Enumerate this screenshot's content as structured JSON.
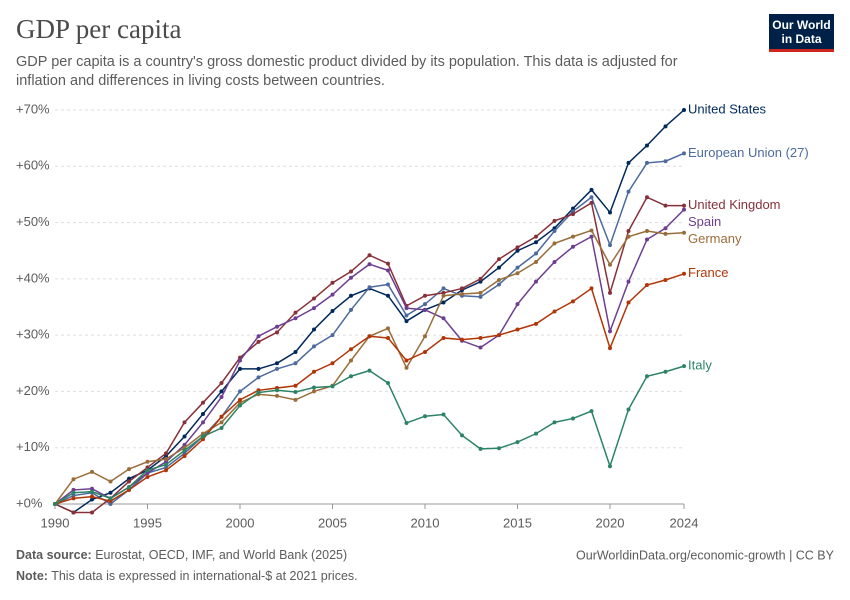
{
  "chart_data": {
    "type": "line",
    "title": "GDP per capita",
    "subtitle": [
      "GDP per capita is a country's gross domestic product divided by its population. This data is adjusted for",
      "inflation and differences in living costs between countries."
    ],
    "logo": [
      "Our World",
      "in Data"
    ],
    "source_label": "Data source:",
    "source": "Eurostat, OECD, IMF, and World Bank (2025)",
    "note_label": "Note:",
    "note": "This data is expressed in international-$ at 2021 prices.",
    "credit": "OurWorldinData.org/economic-growth | CC BY",
    "x": [
      1990,
      1991,
      1992,
      1993,
      1994,
      1995,
      1996,
      1997,
      1998,
      1999,
      2000,
      2001,
      2002,
      2003,
      2004,
      2005,
      2006,
      2007,
      2008,
      2009,
      2010,
      2011,
      2012,
      2013,
      2014,
      2015,
      2016,
      2017,
      2018,
      2019,
      2020,
      2021,
      2022,
      2023,
      2024
    ],
    "xlim": [
      1990,
      2024
    ],
    "xticks": [
      1990,
      1995,
      2000,
      2005,
      2010,
      2015,
      2020,
      2024
    ],
    "ylim": [
      0,
      70
    ],
    "yticks": [
      {
        "value": 0,
        "label": "+0%"
      },
      {
        "value": 10,
        "label": "+10%"
      },
      {
        "value": 20,
        "label": "+20%"
      },
      {
        "value": 30,
        "label": "+30%"
      },
      {
        "value": 40,
        "label": "+40%"
      },
      {
        "value": 50,
        "label": "+50%"
      },
      {
        "value": 60,
        "label": "+60%"
      },
      {
        "value": 70,
        "label": "+70%"
      }
    ],
    "grid": true,
    "series": [
      {
        "name": "United States",
        "color": "#00295b",
        "values": [
          0,
          -1.5,
          0.8,
          2,
          4.5,
          6,
          8.5,
          12,
          16,
          20,
          24,
          24,
          25,
          27,
          31,
          34.3,
          37,
          38.3,
          37,
          32.5,
          34.5,
          35.8,
          38,
          39.5,
          42,
          45,
          46.5,
          49,
          52.5,
          55.8,
          51.8,
          60.6,
          63.7,
          67.1,
          70
        ]
      },
      {
        "name": "European Union (27)",
        "color": "#4c6a9c",
        "values": [
          0,
          1.5,
          2,
          0,
          2.5,
          5.5,
          6.5,
          9,
          12,
          15.5,
          20,
          22.5,
          24,
          25,
          28,
          30,
          34.5,
          38.5,
          39,
          33.5,
          35.5,
          38.3,
          37,
          36.8,
          39,
          42,
          44.5,
          48.5,
          52,
          54.5,
          46,
          55.5,
          60.6,
          60.9,
          62.3
        ]
      },
      {
        "name": "United Kingdom",
        "color": "#883039",
        "values": [
          0,
          -1.5,
          -1.5,
          1,
          4,
          6.5,
          9,
          14.5,
          18,
          21.5,
          26,
          28.8,
          30.5,
          34,
          36.5,
          39.3,
          41.3,
          44.2,
          42.7,
          35.2,
          37,
          37.5,
          38.3,
          40,
          43.5,
          45.6,
          47.5,
          50.3,
          51.5,
          53.5,
          37.5,
          48.5,
          54.5,
          53,
          53
        ]
      },
      {
        "name": "Spain",
        "color": "#6d3e91",
        "values": [
          0,
          2.5,
          2.7,
          1,
          3,
          5.5,
          7.5,
          10.5,
          14.5,
          19,
          25.5,
          29.8,
          31.5,
          33,
          34.8,
          37.2,
          40.2,
          42.6,
          41.5,
          34.8,
          34.5,
          33,
          29,
          27.8,
          30,
          35.5,
          39.5,
          43,
          45.7,
          47.5,
          30.7,
          39.5,
          47,
          49,
          52.3
        ]
      },
      {
        "name": "Germany",
        "color": "#996d39",
        "values": [
          0,
          4.4,
          5.7,
          4,
          6.2,
          7.5,
          8,
          10,
          12.5,
          14.5,
          18,
          19.5,
          19.2,
          18.5,
          20,
          21,
          25.5,
          29.8,
          31.2,
          24.2,
          29.8,
          37,
          37.3,
          37.5,
          39.8,
          41,
          43,
          46.3,
          47.5,
          48.6,
          42.5,
          47.5,
          48.5,
          48,
          48.2
        ]
      },
      {
        "name": "France",
        "color": "#b13507",
        "values": [
          0,
          1,
          1.3,
          0.5,
          2.5,
          4.8,
          6,
          8.5,
          11.5,
          15.5,
          18.5,
          20.2,
          20.6,
          21,
          23.5,
          25,
          27.5,
          29.8,
          29.5,
          25.5,
          27,
          29.5,
          29.2,
          29.5,
          30,
          31,
          32,
          34.2,
          36,
          38.3,
          27.7,
          35.8,
          38.9,
          39.8,
          40.9
        ]
      },
      {
        "name": "Italy",
        "color": "#2c8465",
        "values": [
          0,
          2,
          2.2,
          1,
          3,
          6,
          7,
          9.5,
          12,
          13.5,
          17.5,
          19.8,
          20.2,
          19.9,
          20.7,
          20.9,
          22.7,
          23.7,
          21.5,
          14.4,
          15.6,
          15.9,
          12.2,
          9.8,
          9.9,
          11,
          12.5,
          14.5,
          15.2,
          16.5,
          6.7,
          16.8,
          22.7,
          23.5,
          24.5
        ]
      }
    ]
  }
}
